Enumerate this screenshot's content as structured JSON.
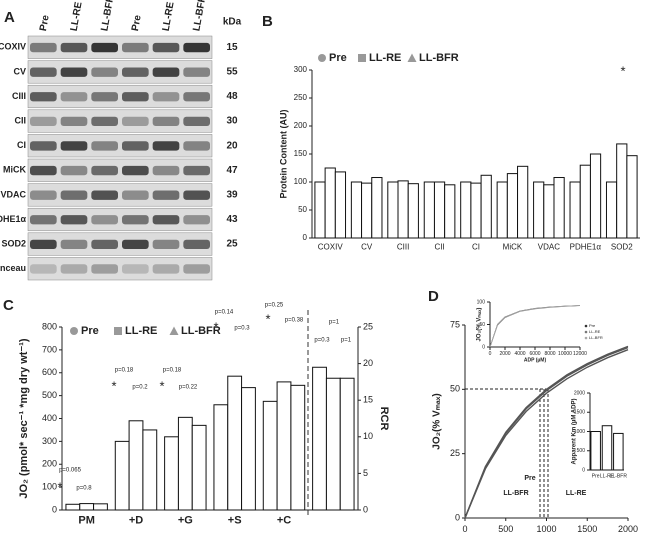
{
  "blot": {
    "panel": "A",
    "lanes": [
      "Pre",
      "LL-RE",
      "LL-BFR",
      "Pre",
      "LL-RE",
      "LL-BFR"
    ],
    "unit": "kDa",
    "rows": [
      [
        "COXIV",
        "15"
      ],
      [
        "CV",
        "55"
      ],
      [
        "CIII",
        "48"
      ],
      [
        "CII",
        "30"
      ],
      [
        "CI",
        "20"
      ],
      [
        "MiCK",
        "47"
      ],
      [
        "VDAC",
        "39"
      ],
      [
        "PDHE1α",
        "43"
      ],
      [
        "SOD2",
        "25"
      ],
      [
        "Ponceau"
      ]
    ]
  },
  "chart_data": [
    {
      "type": "bar",
      "panel": "B",
      "ylabel": "Protein Content (AU)",
      "categories": [
        "COXIV",
        "CV",
        "CIII",
        "CII",
        "CI",
        "MiCK",
        "VDAC",
        "PDHE1α",
        "SOD2"
      ],
      "series": [
        {
          "name": "Pre",
          "color": "#999999",
          "marker": "circle",
          "values": [
            100,
            100,
            100,
            100,
            100,
            100,
            100,
            100,
            100
          ]
        },
        {
          "name": "LL-RE",
          "color": "#999999",
          "marker": "square",
          "values": [
            125,
            98,
            102,
            100,
            98,
            115,
            95,
            130,
            168
          ]
        },
        {
          "name": "LL-BFR",
          "color": "#999999",
          "marker": "triangle",
          "values": [
            118,
            108,
            97,
            95,
            112,
            128,
            108,
            150,
            147
          ]
        }
      ],
      "ylim": [
        0,
        300
      ],
      "yticks": [
        0,
        50,
        100,
        150,
        200,
        250,
        300
      ],
      "annotations": [
        "*"
      ]
    },
    {
      "type": "bar",
      "panel": "C",
      "ylabel": "JO₂ (pmol* sec⁻¹ *mg dry wt⁻¹)",
      "y2label": "RCR",
      "categories": [
        "PM",
        "+D",
        "+G",
        "+S",
        "+C",
        null
      ],
      "series": [
        {
          "name": "Pre",
          "color": "#999999",
          "marker": "circle",
          "values": [
            25,
            300,
            320,
            460,
            475,
            null
          ]
        },
        {
          "name": "LL-RE",
          "color": "#999999",
          "marker": "square",
          "values": [
            28,
            390,
            405,
            585,
            560,
            null
          ]
        },
        {
          "name": "LL-BFR",
          "color": "#999999",
          "marker": "triangle",
          "values": [
            27,
            350,
            370,
            535,
            545,
            null
          ]
        },
        {
          "axis": "y2",
          "values": [
            null,
            null,
            null,
            null,
            null,
            19.5
          ]
        },
        {
          "axis": "y2",
          "values": [
            null,
            null,
            null,
            null,
            null,
            18
          ]
        },
        {
          "axis": "y2",
          "values": [
            null,
            null,
            null,
            null,
            null,
            18
          ]
        }
      ],
      "ylim": [
        0,
        800
      ],
      "yticks": [
        0,
        100,
        200,
        300,
        400,
        500,
        600,
        700,
        800
      ],
      "y2lim": [
        0,
        25
      ],
      "y2ticks": [
        0,
        5,
        10,
        15,
        20,
        25
      ],
      "annotations": [
        "p=0.065",
        "*",
        "p=0.8",
        "p=0.18",
        "*",
        "p=0.2",
        "p=0.18",
        "*",
        "p=0.22",
        "p=0.14",
        "*",
        "p=0.3",
        "p=0.25",
        "*",
        "p=0.38",
        "p=1",
        "p=0.3",
        "p=1"
      ]
    },
    {
      "type": "line",
      "panel": "D",
      "xlabel": "ADP (µM)",
      "ylabel": "JO₂(% Vₘₐₓ)",
      "x": [
        0,
        250,
        500,
        750,
        1000,
        1250,
        1500,
        1750,
        2000
      ],
      "series": [
        {
          "name": "Pre",
          "color": "#555555",
          "values": [
            0,
            20,
            33.3,
            42.9,
            50,
            55.6,
            60,
            63.6,
            66.7
          ]
        },
        {
          "name": "LL-BFR",
          "color": "#555555",
          "values": [
            0,
            19.7,
            32.9,
            42.4,
            49.5,
            55.1,
            59.5,
            63.2,
            66.2
          ]
        },
        {
          "name": "LL-RE",
          "color": "#555555",
          "values": [
            0,
            19.1,
            32.1,
            41.4,
            48.5,
            54.1,
            58.6,
            62.3,
            65.4
          ]
        }
      ],
      "xlim": [
        0,
        2000
      ],
      "xticks": [
        0,
        500,
        1000,
        1500,
        2000
      ],
      "ylim": [
        0,
        75
      ],
      "yticks": [
        0,
        25,
        50,
        75
      ]
    },
    {
      "type": "line",
      "xlabel": "ADP (µM)",
      "ylabel": "JO₂(% Vₘₐₓ)",
      "x": [
        0,
        1000,
        2000,
        4000,
        6000,
        8000,
        10000,
        12000
      ],
      "series": [
        {
          "name": "Pre",
          "color": "#333333",
          "values": [
            0,
            50,
            66.7,
            80,
            85.7,
            88.9,
            90.9,
            92.3
          ]
        },
        {
          "name": "LL-RE",
          "color": "#777777",
          "values": [
            0,
            48.5,
            65.4,
            79,
            85,
            88.3,
            90.4,
            91.9
          ]
        },
        {
          "name": "LL-BFR",
          "color": "#aaaaaa",
          "values": [
            0,
            49.5,
            66.2,
            79.7,
            85.5,
            88.7,
            90.7,
            92.2
          ]
        }
      ],
      "xlim": [
        0,
        12000
      ],
      "xticks": [
        0,
        2000,
        4000,
        6000,
        8000,
        10000,
        12000
      ],
      "ylim": [
        0,
        100
      ],
      "yticks": [
        0,
        50,
        100
      ]
    },
    {
      "type": "bar",
      "ylabel": "Apparent Km (µM ADP)",
      "categories": [
        "Pre",
        "LL-RE",
        "LL-BFR"
      ],
      "values": [
        1000,
        1150,
        950
      ],
      "color": "#ffffff",
      "ylim": [
        0,
        2000
      ],
      "yticks": [
        0,
        500,
        1000,
        1500,
        2000
      ]
    }
  ]
}
